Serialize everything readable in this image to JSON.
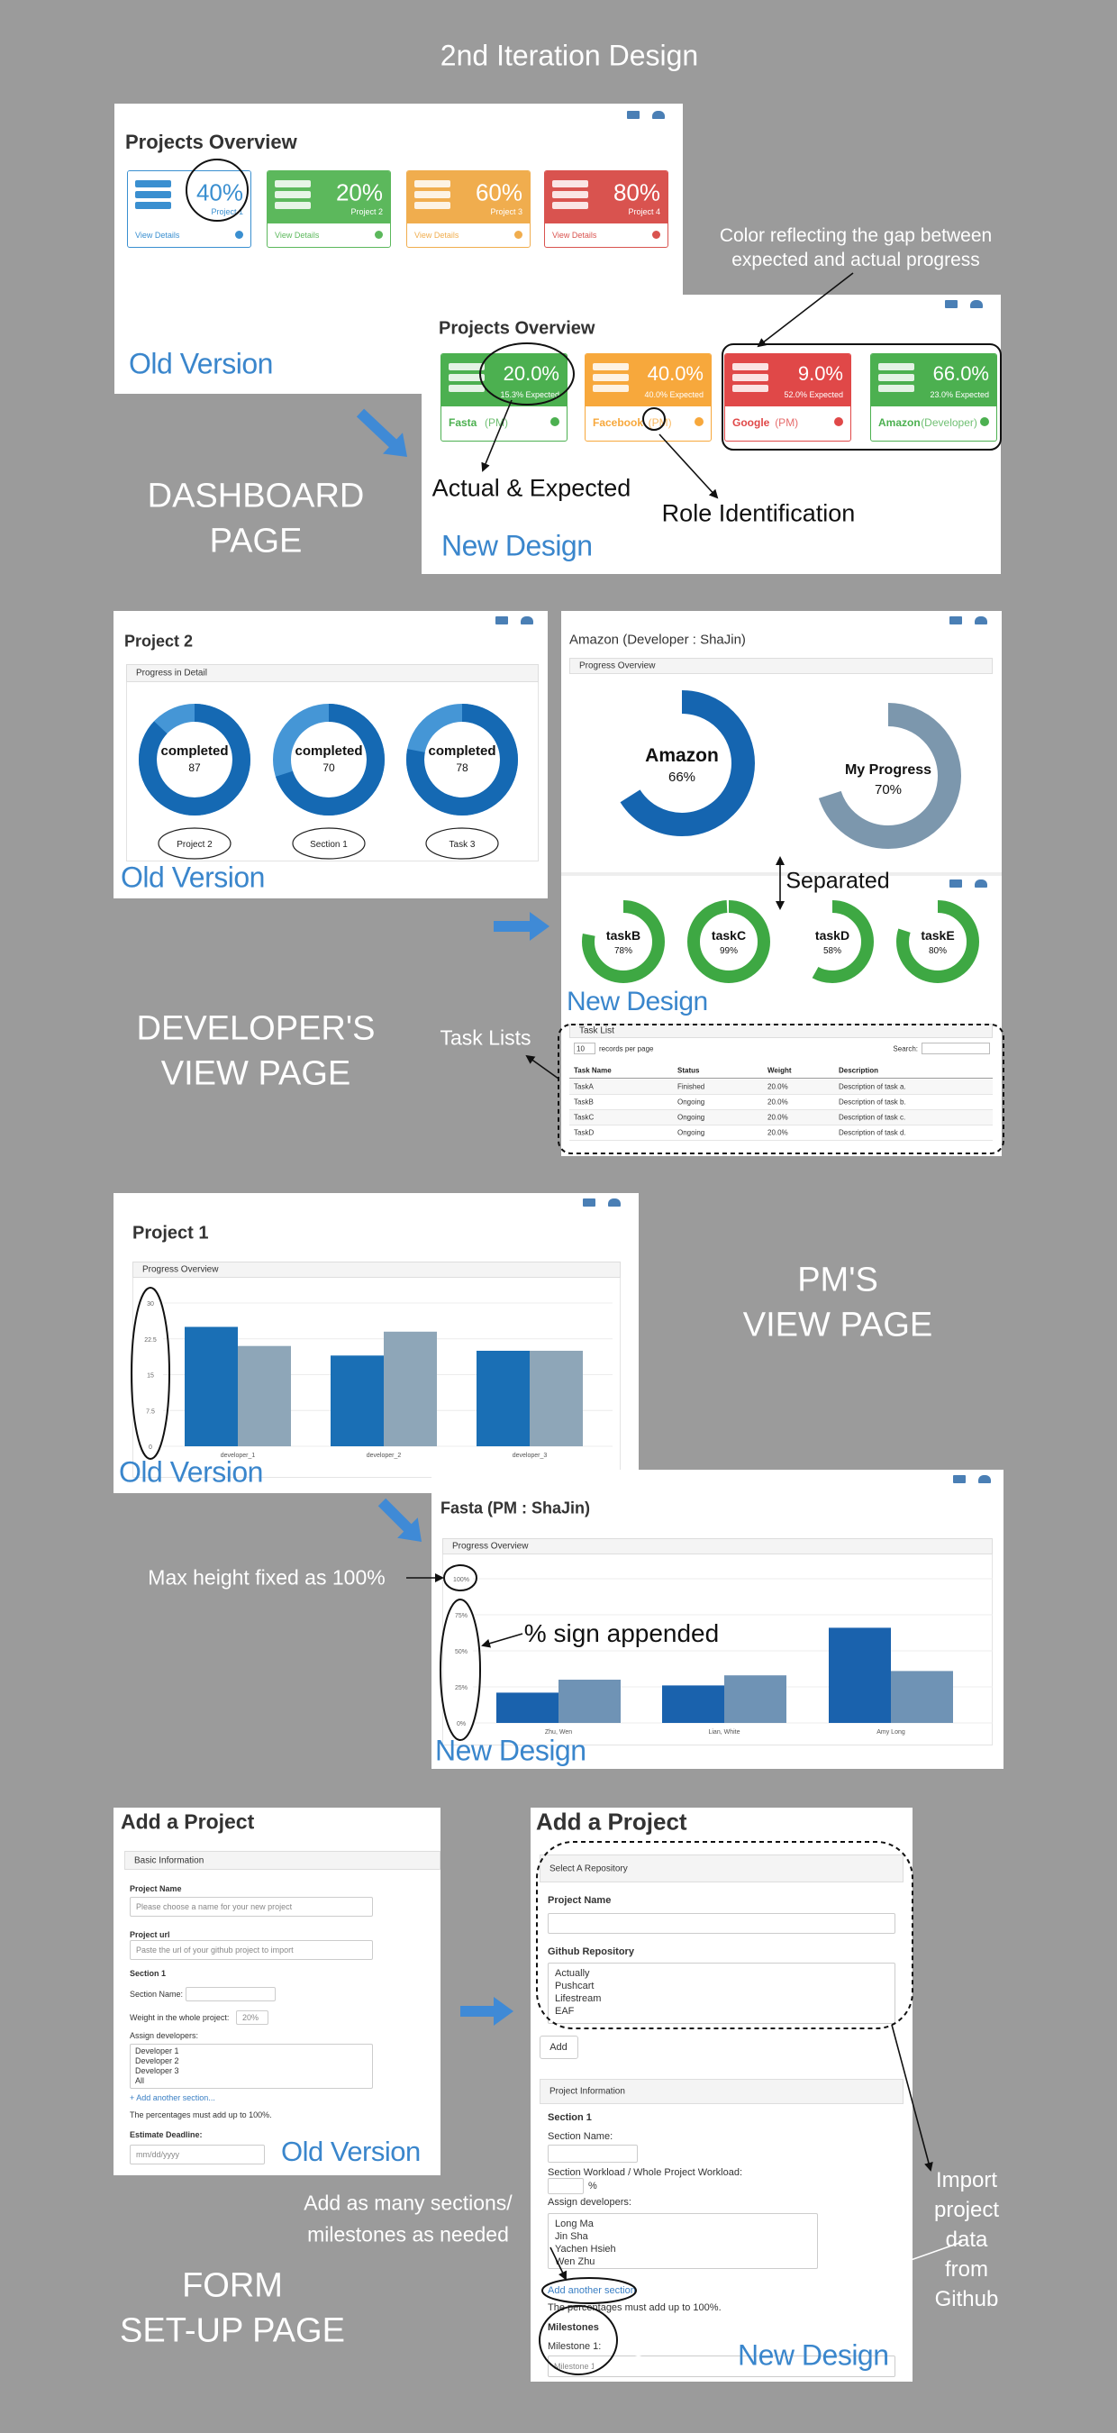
{
  "title": "2nd Iteration Design",
  "dashboard": {
    "section_label": [
      "DASHBOARD",
      "PAGE"
    ],
    "old": {
      "heading": "Projects Overview",
      "version_label": "Old Version",
      "cards": [
        {
          "percent": "40%",
          "project": "Project 1",
          "link": "View Details"
        },
        {
          "percent": "20%",
          "project": "Project 2",
          "link": "View Details"
        },
        {
          "percent": "60%",
          "project": "Project 3",
          "link": "View Details"
        },
        {
          "percent": "80%",
          "project": "Project 4",
          "link": "View Details"
        }
      ]
    },
    "new": {
      "heading": "Projects Overview",
      "version_label": "New Design",
      "cards": [
        {
          "actual": "20.0%",
          "expected": "15.3% Expected",
          "name": "Fasta",
          "role": "(PM)"
        },
        {
          "actual": "40.0%",
          "expected": "40.0% Expected",
          "name": "Facebook",
          "role": "(PM)"
        },
        {
          "actual": "9.0%",
          "expected": "52.0% Expected",
          "name": "Google",
          "role": "(PM)"
        },
        {
          "actual": "66.0%",
          "expected": "23.0% Expected",
          "name": "Amazon",
          "role": "(Developer)"
        }
      ]
    },
    "annotations": {
      "color_gap": [
        "Color reflecting the gap between",
        "expected and actual progress"
      ],
      "actual_expected": "Actual & Expected",
      "role": "Role Identification"
    }
  },
  "developer": {
    "section_label": [
      "DEVELOPER'S",
      "VIEW PAGE"
    ],
    "old": {
      "heading": "Project 2",
      "panel": "Progress in Detail",
      "version_label": "Old Version",
      "donuts": [
        {
          "title": "completed",
          "value": 87,
          "caption": "Project 2"
        },
        {
          "title": "completed",
          "value": 70,
          "caption": "Section 1"
        },
        {
          "title": "completed",
          "value": 78,
          "caption": "Task 3"
        }
      ]
    },
    "new": {
      "heading": "Amazon (Developer : ShaJin)",
      "panel": "Progress Overview",
      "version_label": "New Design",
      "big_donuts": [
        {
          "name": "Amazon",
          "value": 66,
          "label": "66%"
        },
        {
          "name": "My Progress",
          "value": 70,
          "label": "70%"
        }
      ],
      "task_donuts": [
        {
          "name": "taskB",
          "value": 78,
          "label": "78%"
        },
        {
          "name": "taskC",
          "value": 99,
          "label": "99%"
        },
        {
          "name": "taskD",
          "value": 58,
          "label": "58%"
        },
        {
          "name": "taskE",
          "value": 80,
          "label": "80%"
        }
      ],
      "table": {
        "panel": "Task List",
        "length_value": "10",
        "length_menu": "records per page",
        "search": "Search:",
        "columns": [
          "Task Name",
          "Status",
          "Weight",
          "Description"
        ],
        "rows": [
          [
            "TaskA",
            "Finished",
            "20.0%",
            "Description of task a."
          ],
          [
            "TaskB",
            "Ongoing",
            "20.0%",
            "Description of task b."
          ],
          [
            "TaskC",
            "Ongoing",
            "20.0%",
            "Description of task c."
          ],
          [
            "TaskD",
            "Ongoing",
            "20.0%",
            "Description of task d."
          ]
        ]
      }
    },
    "annotations": {
      "separated": "Separated",
      "task_lists": "Task Lists"
    }
  },
  "pm": {
    "section_label": [
      "PM'S",
      "VIEW PAGE"
    ],
    "old": {
      "heading": "Project 1",
      "panel": "Progress Overview",
      "version_label": "Old Version",
      "chart_data": {
        "type": "bar",
        "categories": [
          "developer_1",
          "developer_2",
          "developer_3"
        ],
        "series": [
          {
            "color": "#1a6fb5",
            "values": [
              25,
              19,
              20
            ]
          },
          {
            "color": "#8ea6b8",
            "values": [
              21,
              24,
              20
            ]
          }
        ],
        "ylim": [
          0,
          30
        ],
        "yticks": [
          0,
          7.5,
          15,
          22.5,
          30
        ],
        "grid": true
      }
    },
    "new": {
      "heading": "Fasta (PM : ShaJin)",
      "panel": "Progress Overview",
      "version_label": "New Design",
      "chart_data": {
        "type": "bar",
        "categories": [
          "Zhu, Wen",
          "Lian, White",
          "Amy Long"
        ],
        "series": [
          {
            "color": "#1a62ad",
            "values": [
              21,
              26,
              66
            ]
          },
          {
            "color": "#6f93b5",
            "values": [
              30,
              33,
              36
            ]
          }
        ],
        "ylim": [
          0,
          100
        ],
        "yticks": [
          {
            "value": 0,
            "label": "0%"
          },
          {
            "value": 25,
            "label": "25%"
          },
          {
            "value": 50,
            "label": "50%"
          },
          {
            "value": 75,
            "label": "75%"
          },
          {
            "value": 100,
            "label": "100%"
          }
        ],
        "grid": true
      }
    },
    "annotations": {
      "max_height": "Max height fixed as 100%",
      "percent_sign": "% sign appended"
    }
  },
  "form": {
    "section_label": [
      "FORM",
      "SET-UP PAGE"
    ],
    "old": {
      "heading": "Add a Project",
      "panel": "Basic Information",
      "project_name": "Project Name",
      "project_name_placeholder": "Please choose a name for your new project",
      "project_url": "Project url",
      "project_url_placeholder": "Paste the url of your github project to import",
      "section": "Section 1",
      "section_name": "Section Name:",
      "weight": "Weight in the whole project:",
      "weight_value": "20%",
      "assign": "Assign developers:",
      "developers": [
        "Developer 1",
        "Developer 2",
        "Developer 3",
        "All"
      ],
      "add_section": "+ Add another section...",
      "note": "The percentages must add up to 100%.",
      "deadline": "Estimate Deadline:",
      "deadline_placeholder": "mm/dd/yyyy",
      "version_label": "Old Version"
    },
    "new": {
      "heading": "Add a Project",
      "repo_panel": "Select A Repository",
      "project_name": "Project Name",
      "github": "Github Repository",
      "repos": [
        "Actually",
        "Pushcart",
        "Lifestream",
        "EAF"
      ],
      "add": "Add",
      "info_panel": "Project Information",
      "section": "Section 1",
      "section_name": "Section Name:",
      "workload": "Section Workload / Whole Project Workload:",
      "percent": "%",
      "assign": "Assign developers:",
      "developers": [
        "Long Ma",
        "Jin Sha",
        "Yachen Hsieh",
        "Wen Zhu"
      ],
      "add_section": "Add another section",
      "note": "The percentages must add up to 100%.",
      "milestones": "Milestones",
      "milestone_label": "Milestone 1:",
      "milestone_value": "Milestone 1",
      "version_label": "New Design"
    },
    "annotations": {
      "sections": [
        "Add as many sections/",
        "milestones as needed"
      ],
      "import": [
        "Import",
        "project",
        "data",
        "from",
        "Github"
      ]
    }
  }
}
